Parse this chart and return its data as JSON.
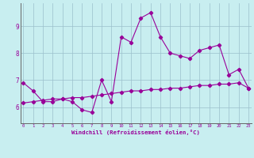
{
  "xlabel": "Windchill (Refroidissement éolien,°C)",
  "bg_color": "#c8eef0",
  "line_color": "#990099",
  "grid_color": "#9bbfcc",
  "x_ticks": [
    0,
    1,
    2,
    3,
    4,
    5,
    6,
    7,
    8,
    9,
    10,
    11,
    12,
    13,
    14,
    15,
    16,
    17,
    18,
    19,
    20,
    21,
    22,
    23
  ],
  "y_ticks": [
    6,
    7,
    8,
    9
  ],
  "ylim": [
    5.4,
    9.85
  ],
  "xlim": [
    -0.3,
    23.3
  ],
  "series1_y": [
    6.9,
    6.6,
    6.2,
    6.2,
    6.3,
    6.2,
    5.9,
    5.8,
    7.0,
    6.2,
    8.6,
    8.4,
    9.3,
    9.5,
    8.6,
    8.0,
    7.9,
    7.8,
    8.1,
    8.2,
    8.3,
    7.2,
    7.4,
    6.7
  ],
  "series2_y": [
    6.15,
    6.2,
    6.25,
    6.3,
    6.3,
    6.35,
    6.35,
    6.4,
    6.45,
    6.5,
    6.55,
    6.6,
    6.6,
    6.65,
    6.65,
    6.7,
    6.7,
    6.75,
    6.8,
    6.8,
    6.85,
    6.85,
    6.9,
    6.7
  ]
}
